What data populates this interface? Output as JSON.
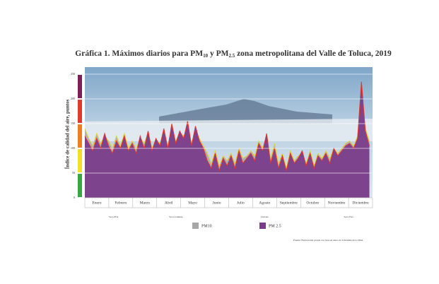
{
  "chart_data": {
    "type": "area",
    "title_parts": [
      "Gráfica 1. Máximos diarios para PM",
      "10",
      " y PM",
      "2.5",
      " zona metropolitana del Valle de Toluca, 2019"
    ],
    "ylabel": "Índice de calidad del aire, puntos",
    "months": [
      "Enero",
      "Febrero",
      "Marzo",
      "Abril",
      "Mayo",
      "Junio",
      "Julio",
      "Agosto",
      "Septiembre",
      "Octubre",
      "Noviembre",
      "Diciembre"
    ],
    "seasons": [
      "Seca Fría",
      "Seca Caliente",
      "Lluvias",
      "Seca Fría"
    ],
    "source": "Fuente: Elaboración propia con base en datos de la RAMA de la SMA",
    "xlim": [
      1,
      365
    ],
    "x": [
      1,
      6,
      11,
      16,
      21,
      26,
      31,
      36,
      41,
      46,
      51,
      56,
      61,
      66,
      71,
      76,
      81,
      86,
      91,
      96,
      101,
      106,
      111,
      116,
      121,
      126,
      131,
      136,
      141,
      146,
      151,
      156,
      161,
      166,
      171,
      176,
      181,
      186,
      191,
      196,
      201,
      206,
      211,
      216,
      221,
      226,
      231,
      236,
      241,
      246,
      251,
      256,
      261,
      266,
      271,
      276,
      281,
      286,
      291,
      296,
      301,
      306,
      311,
      316,
      321,
      326,
      331,
      336,
      341,
      346,
      351,
      356,
      361
    ],
    "ylim": [
      0,
      250
    ],
    "yticks": [
      0,
      50,
      100,
      150,
      200,
      250
    ],
    "grid": true,
    "series": [
      {
        "name": "PM10",
        "color": "#a7a7a7",
        "line_color": "#e6d23c",
        "values": [
          140,
          120,
          105,
          130,
          110,
          125,
          115,
          100,
          125,
          105,
          130,
          100,
          115,
          100,
          120,
          110,
          130,
          100,
          115,
          110,
          130,
          105,
          140,
          115,
          130,
          125,
          140,
          110,
          135,
          120,
          105,
          90,
          70,
          95,
          65,
          85,
          75,
          90,
          70,
          100,
          80,
          85,
          95,
          85,
          115,
          100,
          125,
          80,
          110,
          70,
          90,
          60,
          95,
          75,
          85,
          90,
          70,
          95,
          65,
          90,
          80,
          95,
          80,
          100,
          90,
          100,
          110,
          115,
          105,
          125,
          190,
          140,
          115
        ]
      },
      {
        "name": "PM 2.5",
        "color": "#7a3d8a",
        "line_color": "#e2342e",
        "values": [
          125,
          110,
          95,
          120,
          100,
          130,
          105,
          90,
          115,
          100,
          125,
          95,
          110,
          90,
          125,
          100,
          135,
          95,
          120,
          105,
          140,
          100,
          150,
          110,
          135,
          120,
          155,
          105,
          145,
          115,
          100,
          75,
          60,
          90,
          55,
          80,
          65,
          85,
          60,
          95,
          70,
          80,
          90,
          75,
          110,
          95,
          130,
          70,
          100,
          60,
          85,
          55,
          90,
          70,
          80,
          95,
          65,
          90,
          60,
          85,
          75,
          90,
          70,
          100,
          85,
          95,
          105,
          110,
          100,
          120,
          235,
          135,
          105
        ]
      }
    ]
  }
}
